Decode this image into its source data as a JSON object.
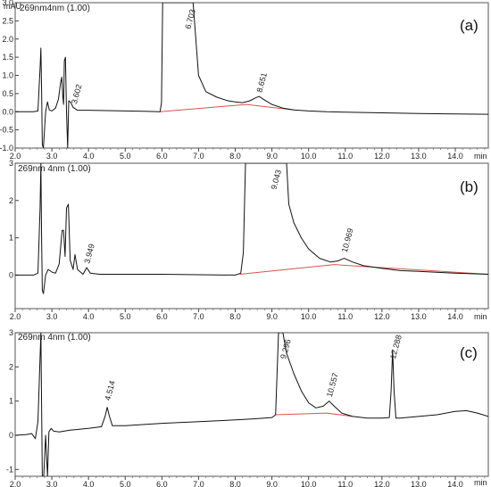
{
  "figure": {
    "title": "",
    "panel_count": 3
  },
  "chart_data": [
    {
      "type": "line",
      "panel_label": "(a)",
      "signal_label": "269nm4nm (1.00)",
      "unit_label": "mAU",
      "xlabel": "min",
      "xlim": [
        2.0,
        14.9
      ],
      "ylim": [
        -1.0,
        3.0
      ],
      "x_ticks": [
        "2.0",
        "3.0",
        "4.0",
        "5.0",
        "6.0",
        "7.0",
        "8.0",
        "9.0",
        "10.0",
        "11.0",
        "12.0",
        "13.0",
        "14.0"
      ],
      "y_ticks": [
        "-1.0",
        "-0.5",
        "0.0",
        "0.5",
        "1.0",
        "1.5",
        "2.0",
        "2.5",
        "3.0"
      ],
      "peak_labels": [
        {
          "label": "3.602",
          "x": 3.6,
          "y": 0.1
        },
        {
          "label": "6.703",
          "x": 6.7,
          "y": 3.0
        },
        {
          "label": "8.651",
          "x": 8.65,
          "y": 0.42
        }
      ],
      "series": [
        {
          "x": [
            2.0,
            2.5,
            2.62,
            2.68,
            2.7,
            2.72,
            2.74,
            2.77,
            2.83,
            2.88,
            2.93,
            3.0,
            3.1,
            3.18,
            3.24,
            3.27,
            3.3,
            3.32,
            3.34,
            3.37,
            3.4,
            3.43,
            3.46,
            3.52,
            3.58,
            3.7,
            4.0,
            4.5,
            5.0,
            5.5,
            5.95,
            5.99,
            6.02,
            6.1,
            6.3,
            6.5,
            6.7,
            6.85,
            7.0,
            7.2,
            7.5,
            7.8,
            8.0,
            8.2,
            8.4,
            8.55,
            8.65,
            8.8,
            9.0,
            9.3,
            9.6,
            10.0,
            10.5,
            11.0,
            12.0,
            13.0,
            14.0,
            14.9
          ],
          "y": [
            0.0,
            0.0,
            0.02,
            1.2,
            1.75,
            0.6,
            -0.9,
            -1.0,
            0.0,
            0.27,
            0.05,
            0.02,
            0.1,
            0.35,
            0.8,
            0.95,
            0.4,
            0.2,
            1.4,
            1.5,
            0.0,
            -1.0,
            0.3,
            0.25,
            0.12,
            0.04,
            0.04,
            0.03,
            0.02,
            0.01,
            0.0,
            0.25,
            3.0,
            3.0,
            3.0,
            3.0,
            3.0,
            3.0,
            1.0,
            0.55,
            0.4,
            0.3,
            0.27,
            0.25,
            0.3,
            0.38,
            0.42,
            0.32,
            0.2,
            0.1,
            0.05,
            0.02,
            0.0,
            -0.01,
            -0.03,
            -0.05,
            -0.06,
            -0.07
          ]
        }
      ],
      "baseline": {
        "x": [
          5.95,
          8.3,
          9.6
        ],
        "y": [
          0.0,
          0.2,
          0.05
        ]
      }
    },
    {
      "type": "line",
      "panel_label": "(b)",
      "signal_label": "269nm 4nm (1.00)",
      "unit_label": "",
      "xlabel": "min",
      "xlim": [
        2.0,
        14.9
      ],
      "ylim": [
        -0.9,
        3.0
      ],
      "x_ticks": [
        "2.0",
        "3.0",
        "4.0",
        "5.0",
        "6.0",
        "7.0",
        "8.0",
        "9.0",
        "10.0",
        "11.0",
        "12.0",
        "13.0",
        "14.0"
      ],
      "y_ticks": [
        "3",
        "2",
        "1",
        "0"
      ],
      "peak_labels": [
        {
          "label": "3.949",
          "x": 3.95,
          "y": 0.2
        },
        {
          "label": "9.043",
          "x": 9.04,
          "y": 3.0
        },
        {
          "label": "10.969",
          "x": 10.97,
          "y": 0.5
        }
      ],
      "series": [
        {
          "x": [
            2.0,
            2.5,
            2.62,
            2.68,
            2.7,
            2.72,
            2.74,
            2.77,
            2.83,
            2.9,
            3.0,
            3.1,
            3.2,
            3.28,
            3.32,
            3.36,
            3.4,
            3.45,
            3.5,
            3.58,
            3.63,
            3.7,
            3.85,
            3.95,
            4.05,
            4.3,
            5.0,
            6.0,
            7.0,
            8.0,
            8.15,
            8.22,
            8.28,
            8.4,
            8.8,
            9.2,
            9.4,
            9.46,
            9.6,
            9.8,
            10.0,
            10.3,
            10.6,
            10.8,
            10.97,
            11.2,
            11.5,
            12.0,
            12.5,
            13.0,
            14.0,
            14.9
          ],
          "y": [
            0.0,
            0.0,
            0.05,
            1.8,
            3.0,
            1.0,
            -0.4,
            -0.5,
            0.0,
            0.15,
            0.08,
            0.05,
            0.3,
            1.2,
            1.2,
            0.5,
            1.8,
            1.9,
            0.4,
            0.15,
            0.55,
            0.15,
            0.02,
            0.2,
            0.05,
            0.02,
            0.02,
            0.02,
            0.01,
            0.0,
            0.05,
            0.6,
            3.0,
            3.0,
            3.0,
            3.0,
            3.0,
            1.9,
            1.4,
            1.0,
            0.7,
            0.45,
            0.35,
            0.38,
            0.45,
            0.35,
            0.25,
            0.18,
            0.12,
            0.1,
            0.05,
            0.02
          ]
        }
      ],
      "baseline": {
        "x": [
          8.12,
          10.7,
          14.9
        ],
        "y": [
          0.02,
          0.28,
          0.02
        ]
      }
    },
    {
      "type": "line",
      "panel_label": "(c)",
      "signal_label": "269nm 4nm (1.00)",
      "unit_label": "",
      "xlabel": "min",
      "xlim": [
        2.0,
        14.9
      ],
      "ylim": [
        -1.2,
        3.0
      ],
      "x_ticks": [
        "2.0",
        "3.0",
        "4.0",
        "5.0",
        "6.0",
        "7.0",
        "8.0",
        "9.0",
        "10.0",
        "11.0",
        "12.0",
        "13.0",
        "14.0"
      ],
      "y_ticks": [
        "3",
        "2",
        "1",
        "0",
        "-1"
      ],
      "peak_labels": [
        {
          "label": "4.514",
          "x": 4.51,
          "y": 0.9
        },
        {
          "label": "9.296",
          "x": 9.3,
          "y": 3.0
        },
        {
          "label": "10.557",
          "x": 10.56,
          "y": 1.0
        },
        {
          "label": "12.288",
          "x": 12.29,
          "y": 2.5
        }
      ],
      "series": [
        {
          "x": [
            2.0,
            2.3,
            2.45,
            2.55,
            2.62,
            2.7,
            2.74,
            2.78,
            2.83,
            2.88,
            2.92,
            2.98,
            3.05,
            3.2,
            3.5,
            4.0,
            4.35,
            4.45,
            4.51,
            4.57,
            4.65,
            5.0,
            6.0,
            7.0,
            8.0,
            8.5,
            9.0,
            9.1,
            9.18,
            9.23,
            9.3,
            9.4,
            9.6,
            9.8,
            10.0,
            10.2,
            10.4,
            10.56,
            10.7,
            10.9,
            11.2,
            11.6,
            12.0,
            12.2,
            12.25,
            12.29,
            12.33,
            12.38,
            12.5,
            13.0,
            13.5,
            14.0,
            14.3,
            14.6,
            14.9
          ],
          "y": [
            0.0,
            0.02,
            0.05,
            -0.1,
            0.4,
            3.0,
            -1.2,
            -1.2,
            0.0,
            -1.2,
            0.1,
            0.2,
            0.12,
            0.1,
            0.15,
            0.2,
            0.25,
            0.55,
            0.82,
            0.55,
            0.28,
            0.28,
            0.35,
            0.4,
            0.45,
            0.48,
            0.52,
            0.6,
            3.0,
            3.0,
            3.0,
            2.4,
            1.8,
            1.3,
            0.95,
            0.8,
            0.85,
            1.0,
            0.85,
            0.65,
            0.55,
            0.5,
            0.5,
            0.52,
            1.3,
            2.5,
            1.3,
            0.5,
            0.5,
            0.55,
            0.6,
            0.7,
            0.72,
            0.65,
            0.55
          ]
        }
      ],
      "baseline": {
        "x": [
          9.1,
          10.5,
          11.2
        ],
        "y": [
          0.6,
          0.65,
          0.55
        ]
      }
    }
  ]
}
